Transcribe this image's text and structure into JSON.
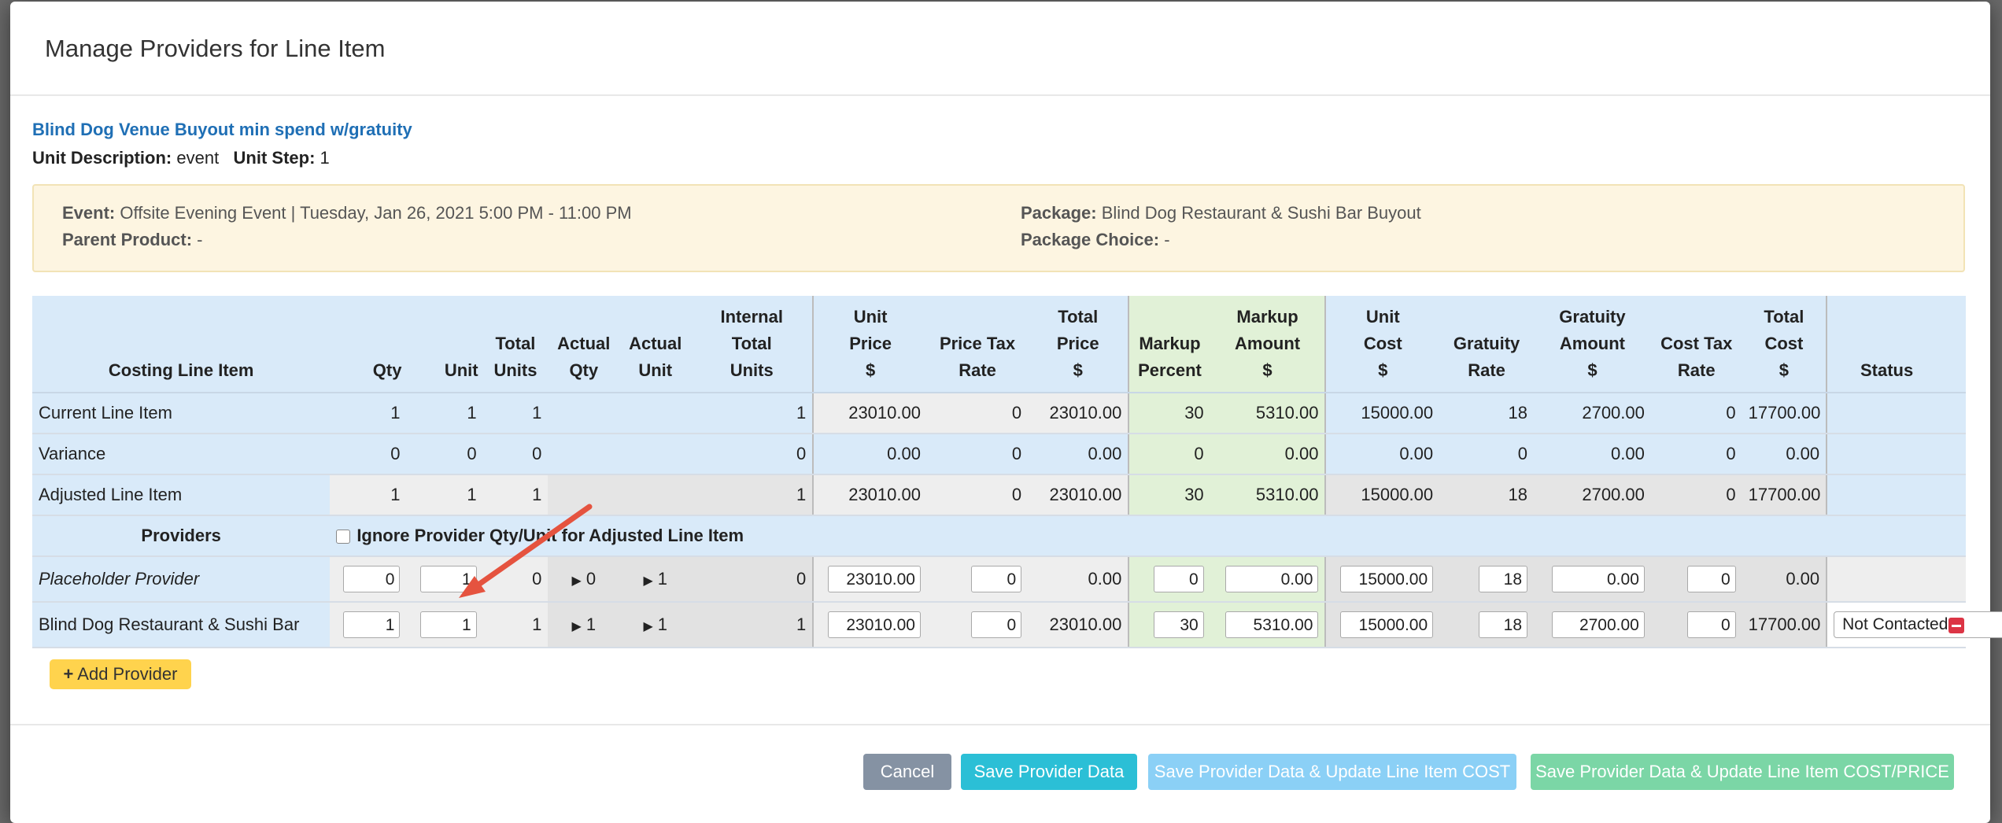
{
  "modal": {
    "title": "Manage Providers for Line Item"
  },
  "item": {
    "title": "Blind Dog Venue Buyout min spend w/gratuity",
    "unit_description_label": "Unit Description:",
    "unit_description": "event",
    "unit_step_label": "Unit Step:",
    "unit_step": "1"
  },
  "info": {
    "event_label": "Event:",
    "event": "Offsite Evening Event | Tuesday, Jan 26, 2021 5:00 PM - 11:00 PM",
    "parent_label": "Parent Product:",
    "parent": "-",
    "package_label": "Package:",
    "package": "Blind Dog Restaurant & Sushi Bar Buyout",
    "package_choice_label": "Package Choice:",
    "package_choice": "-"
  },
  "table": {
    "headers": {
      "costing": "Costing Line Item",
      "qty": "Qty",
      "unit": "Unit",
      "total_units": [
        "Total",
        "Units"
      ],
      "actual_qty": [
        "Actual",
        "Qty"
      ],
      "actual_unit": [
        "Actual",
        "Unit"
      ],
      "internal_total_units": [
        "Internal",
        "Total",
        "Units"
      ],
      "unit_price": [
        "Unit",
        "Price",
        "$"
      ],
      "price_tax_rate": [
        "Price Tax",
        "Rate"
      ],
      "total_price": [
        "Total",
        "Price",
        "$"
      ],
      "markup_percent": [
        "Markup",
        "Percent"
      ],
      "markup_amount": [
        "Markup",
        "Amount",
        "$"
      ],
      "unit_cost": [
        "Unit",
        "Cost",
        "$"
      ],
      "gratuity_rate": [
        "Gratuity",
        "Rate"
      ],
      "gratuity_amount": [
        "Gratuity",
        "Amount",
        "$"
      ],
      "cost_tax_rate": [
        "Cost Tax",
        "Rate"
      ],
      "total_cost": [
        "Total",
        "Cost",
        "$"
      ],
      "status": "Status"
    },
    "rows": {
      "current": {
        "label": "Current Line Item",
        "qty": "1",
        "unit": "1",
        "total_units": "1",
        "internal": "1",
        "unit_price": "23010.00",
        "price_tax": "0",
        "total_price": "23010.00",
        "markup_pct": "30",
        "markup_amt": "5310.00",
        "unit_cost": "15000.00",
        "grat_rate": "18",
        "grat_amt": "2700.00",
        "cost_tax": "0",
        "total_cost": "17700.00"
      },
      "variance": {
        "label": "Variance",
        "qty": "0",
        "unit": "0",
        "total_units": "0",
        "internal": "0",
        "unit_price": "0.00",
        "price_tax": "0",
        "total_price": "0.00",
        "markup_pct": "0",
        "markup_amt": "0.00",
        "unit_cost": "0.00",
        "grat_rate": "0",
        "grat_amt": "0.00",
        "cost_tax": "0",
        "total_cost": "0.00"
      },
      "adjusted": {
        "label": "Adjusted Line Item",
        "qty": "1",
        "unit": "1",
        "total_units": "1",
        "internal": "1",
        "unit_price": "23010.00",
        "price_tax": "0",
        "total_price": "23010.00",
        "markup_pct": "30",
        "markup_amt": "5310.00",
        "unit_cost": "15000.00",
        "grat_rate": "18",
        "grat_amt": "2700.00",
        "cost_tax": "0",
        "total_cost": "17700.00"
      }
    },
    "providers_label": "Providers",
    "ignore_label": "Ignore Provider Qty/Unit for Adjusted Line Item",
    "providers": [
      {
        "label": "Placeholder Provider",
        "qty": "0",
        "unit": "1",
        "total_units": "0",
        "actual_qty": "0",
        "actual_unit": "1",
        "internal": "0",
        "unit_price": "23010.00",
        "price_tax": "0",
        "total_price": "0.00",
        "markup_pct": "0",
        "markup_amt": "0.00",
        "unit_cost": "15000.00",
        "grat_rate": "18",
        "grat_amt": "0.00",
        "cost_tax": "0",
        "total_cost": "0.00"
      },
      {
        "label": "Blind Dog Restaurant & Sushi Bar",
        "qty": "1",
        "unit": "1",
        "total_units": "1",
        "actual_qty": "1",
        "actual_unit": "1",
        "internal": "1",
        "unit_price": "23010.00",
        "price_tax": "0",
        "total_price": "23010.00",
        "markup_pct": "30",
        "markup_amt": "5310.00",
        "unit_cost": "15000.00",
        "grat_rate": "18",
        "grat_amt": "2700.00",
        "cost_tax": "0",
        "total_cost": "17700.00",
        "status": "Not Contacted"
      }
    ]
  },
  "buttons": {
    "add_provider": "Add Provider",
    "cancel": "Cancel",
    "save": "Save Provider Data",
    "save_cost": "Save Provider Data & Update Line Item COST",
    "save_cost_price": "Save Provider Data & Update Line Item COST/PRICE"
  },
  "colors": {
    "header_blue": "#d9eaf9",
    "markup_green": "#e1f1d7",
    "link_blue": "#1f6fb5",
    "btn_cancel": "#8592a3",
    "btn_save": "#2bbfd6",
    "btn_save_cost": "#8bd0f6",
    "btn_save_cost_price": "#7bd6a6",
    "add_yellow": "#ffd34d",
    "arrow_red": "#e5533f"
  }
}
